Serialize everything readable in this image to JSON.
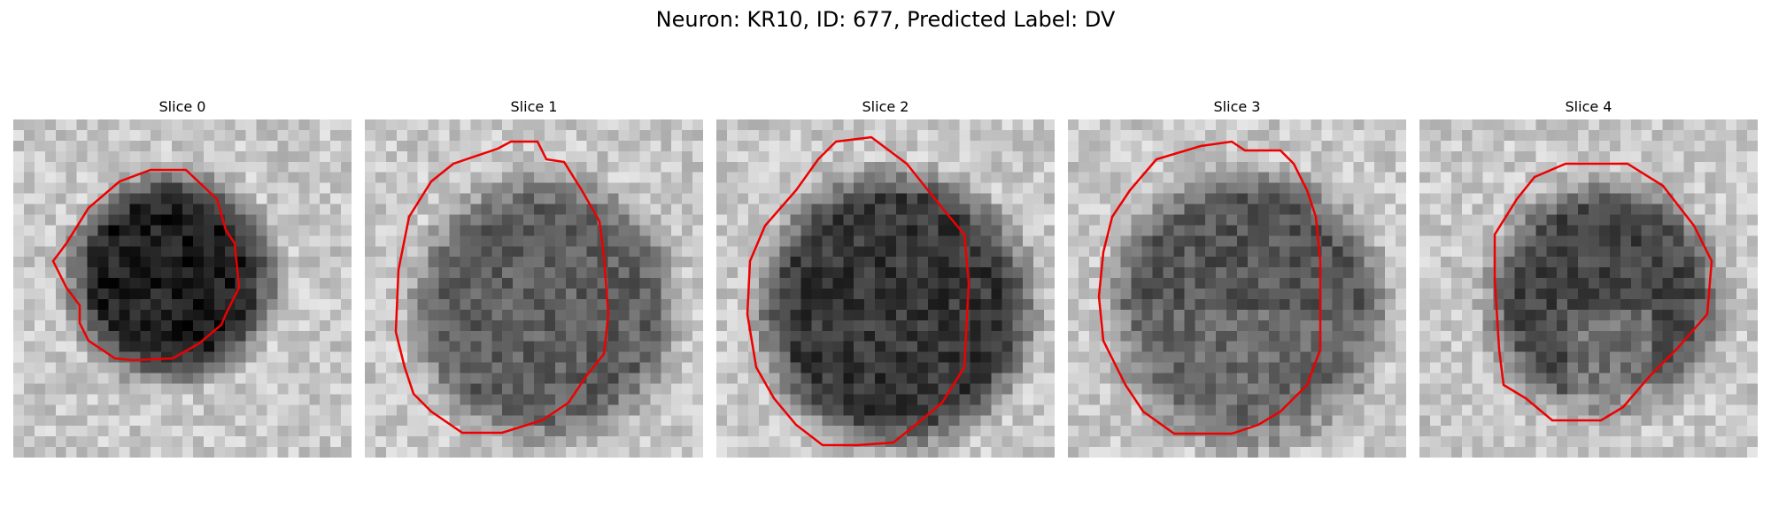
{
  "figure": {
    "title": "Neuron: KR10, ID: 677, Predicted Label: DV"
  },
  "panels": [
    {
      "title": "Slice 0"
    },
    {
      "title": "Slice 1"
    },
    {
      "title": "Slice 2"
    },
    {
      "title": "Slice 3"
    },
    {
      "title": "Slice 4"
    }
  ],
  "colors": {
    "contour": "#ee0000",
    "background": "#ffffff"
  }
}
